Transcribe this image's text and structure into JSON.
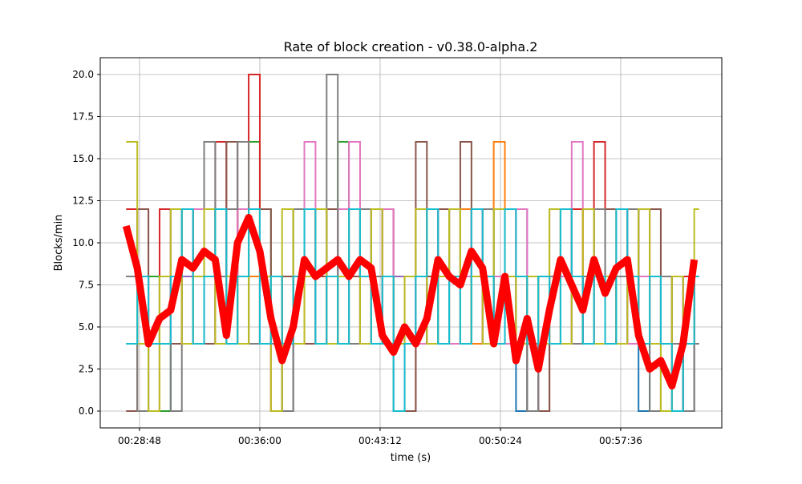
{
  "chart_data": {
    "type": "line",
    "drawstyle": "steps-post",
    "title": "Rate of block creation  -  v0.38.0-alpha.2",
    "xlabel": "time (s)",
    "ylabel": "Blocks/min",
    "xlim": [
      "00:26:27",
      "01:03:39"
    ],
    "ylim": [
      -1,
      21
    ],
    "grid": true,
    "xticks": [
      "00:28:48",
      "00:36:00",
      "00:43:12",
      "00:50:24",
      "00:57:36"
    ],
    "yticks": [
      "0.0",
      "2.5",
      "5.0",
      "7.5",
      "10.0",
      "12.5",
      "15.0",
      "17.5",
      "20.0"
    ],
    "x": [
      "00:28:00",
      "00:28:40",
      "00:29:20",
      "00:30:00",
      "00:30:40",
      "00:31:20",
      "00:32:00",
      "00:32:40",
      "00:33:20",
      "00:34:00",
      "00:34:40",
      "00:35:20",
      "00:36:00",
      "00:36:40",
      "00:37:20",
      "00:38:00",
      "00:38:40",
      "00:39:20",
      "00:40:00",
      "00:40:40",
      "00:41:20",
      "00:42:00",
      "00:42:40",
      "00:43:20",
      "00:44:00",
      "00:44:40",
      "00:45:20",
      "00:46:00",
      "00:46:40",
      "00:47:20",
      "00:48:00",
      "00:48:40",
      "00:49:20",
      "00:50:00",
      "00:50:40",
      "00:51:20",
      "00:52:00",
      "00:52:40",
      "00:53:20",
      "00:54:00",
      "00:54:40",
      "00:55:20",
      "00:56:00",
      "00:56:40",
      "00:57:20",
      "00:58:00",
      "00:58:40",
      "00:59:20",
      "01:00:00",
      "01:00:40",
      "01:01:20",
      "01:02:00"
    ],
    "series": [
      {
        "color": "#1f77b4",
        "values": [
          4,
          8,
          4,
          0,
          8,
          12,
          8,
          4,
          8,
          12,
          8,
          4,
          8,
          0,
          4,
          8,
          12,
          8,
          4,
          8,
          12,
          4,
          8,
          12,
          0,
          4,
          8,
          12,
          8,
          4,
          12,
          8,
          4,
          8,
          12,
          0,
          4,
          0,
          8,
          12,
          8,
          4,
          12,
          8,
          4,
          8,
          0,
          4,
          8,
          4,
          0,
          8
        ]
      },
      {
        "color": "#ff7f0e",
        "values": [
          8,
          0,
          4,
          8,
          12,
          4,
          8,
          12,
          4,
          8,
          12,
          8,
          4,
          0,
          8,
          4,
          8,
          12,
          8,
          4,
          12,
          8,
          4,
          8,
          4,
          0,
          12,
          8,
          4,
          8,
          12,
          4,
          8,
          16,
          8,
          4,
          8,
          4,
          12,
          8,
          4,
          12,
          8,
          4,
          8,
          12,
          4,
          8,
          0,
          4,
          8,
          4
        ]
      },
      {
        "color": "#2ca02c",
        "values": [
          4,
          4,
          8,
          0,
          8,
          12,
          4,
          8,
          12,
          8,
          4,
          16,
          12,
          8,
          0,
          12,
          4,
          8,
          4,
          16,
          8,
          12,
          4,
          8,
          4,
          8,
          4,
          12,
          8,
          12,
          4,
          8,
          12,
          4,
          8,
          4,
          0,
          8,
          4,
          12,
          8,
          4,
          8,
          12,
          4,
          8,
          4,
          0,
          8,
          4,
          8,
          4
        ]
      },
      {
        "color": "#d62728",
        "values": [
          12,
          4,
          0,
          12,
          4,
          8,
          12,
          4,
          16,
          8,
          12,
          20,
          8,
          4,
          8,
          4,
          12,
          8,
          4,
          8,
          12,
          4,
          8,
          12,
          4,
          8,
          12,
          4,
          8,
          12,
          4,
          8,
          4,
          8,
          12,
          8,
          4,
          0,
          8,
          4,
          12,
          8,
          16,
          4,
          8,
          12,
          4,
          8,
          4,
          0,
          8,
          4
        ]
      },
      {
        "color": "#9467bd",
        "values": [
          8,
          12,
          4,
          4,
          12,
          8,
          4,
          12,
          8,
          4,
          8,
          12,
          8,
          4,
          0,
          8,
          12,
          4,
          8,
          12,
          4,
          8,
          12,
          4,
          8,
          0,
          8,
          4,
          12,
          8,
          4,
          12,
          8,
          4,
          8,
          12,
          4,
          8,
          12,
          4,
          8,
          4,
          12,
          8,
          4,
          12,
          8,
          12,
          4,
          8,
          4,
          8
        ]
      },
      {
        "color": "#8c564b",
        "values": [
          0,
          12,
          4,
          8,
          4,
          12,
          8,
          4,
          12,
          16,
          8,
          4,
          12,
          4,
          8,
          12,
          4,
          8,
          12,
          4,
          8,
          4,
          12,
          8,
          4,
          0,
          16,
          8,
          12,
          4,
          16,
          8,
          4,
          12,
          8,
          4,
          8,
          0,
          4,
          12,
          8,
          4,
          8,
          12,
          4,
          8,
          4,
          12,
          8,
          4,
          0,
          8
        ]
      },
      {
        "color": "#e377c2",
        "values": [
          4,
          8,
          0,
          4,
          8,
          4,
          12,
          8,
          4,
          8,
          12,
          4,
          8,
          0,
          4,
          8,
          16,
          4,
          8,
          12,
          16,
          8,
          4,
          12,
          4,
          8,
          4,
          12,
          8,
          4,
          8,
          12,
          4,
          8,
          4,
          12,
          0,
          8,
          4,
          8,
          16,
          12,
          4,
          8,
          12,
          4,
          8,
          4,
          0,
          8,
          4,
          8
        ]
      },
      {
        "color": "#7f7f7f",
        "values": [
          8,
          0,
          4,
          8,
          0,
          12,
          4,
          16,
          8,
          12,
          16,
          4,
          8,
          4,
          0,
          12,
          8,
          4,
          20,
          8,
          4,
          12,
          8,
          4,
          0,
          8,
          12,
          4,
          8,
          12,
          4,
          8,
          12,
          4,
          8,
          4,
          0,
          4,
          8,
          12,
          4,
          8,
          12,
          4,
          8,
          12,
          4,
          0,
          8,
          4,
          0,
          4
        ]
      },
      {
        "color": "#bcbd22",
        "values": [
          16,
          4,
          0,
          8,
          12,
          4,
          8,
          12,
          4,
          8,
          4,
          12,
          8,
          0,
          12,
          4,
          8,
          12,
          4,
          8,
          12,
          4,
          12,
          8,
          4,
          8,
          12,
          4,
          8,
          12,
          4,
          8,
          4,
          12,
          8,
          4,
          8,
          4,
          12,
          4,
          8,
          12,
          4,
          8,
          4,
          8,
          12,
          4,
          0,
          8,
          4,
          12
        ]
      },
      {
        "color": "#17becf",
        "values": [
          4,
          8,
          4,
          4,
          8,
          12,
          4,
          8,
          12,
          4,
          8,
          12,
          4,
          8,
          4,
          8,
          12,
          4,
          8,
          4,
          12,
          8,
          4,
          8,
          0,
          4,
          8,
          12,
          4,
          8,
          4,
          12,
          8,
          4,
          12,
          8,
          4,
          8,
          4,
          12,
          8,
          4,
          8,
          4,
          12,
          8,
          4,
          8,
          4,
          0,
          4,
          8
        ]
      }
    ],
    "average": {
      "color": "#ff0000",
      "values": [
        11,
        8.5,
        4,
        5.5,
        6,
        9,
        8.5,
        9.5,
        9,
        4.5,
        10,
        11.5,
        9.5,
        5.5,
        3,
        5,
        9,
        8,
        8.5,
        9,
        8,
        9,
        8.5,
        4.5,
        3.5,
        5,
        4,
        5.5,
        9,
        8,
        7.5,
        9.5,
        8.5,
        4,
        8,
        3,
        5.5,
        2.5,
        6,
        9,
        7.5,
        6,
        9,
        7,
        8.5,
        9,
        4.5,
        2.5,
        3,
        1.5,
        4,
        9
      ]
    }
  }
}
